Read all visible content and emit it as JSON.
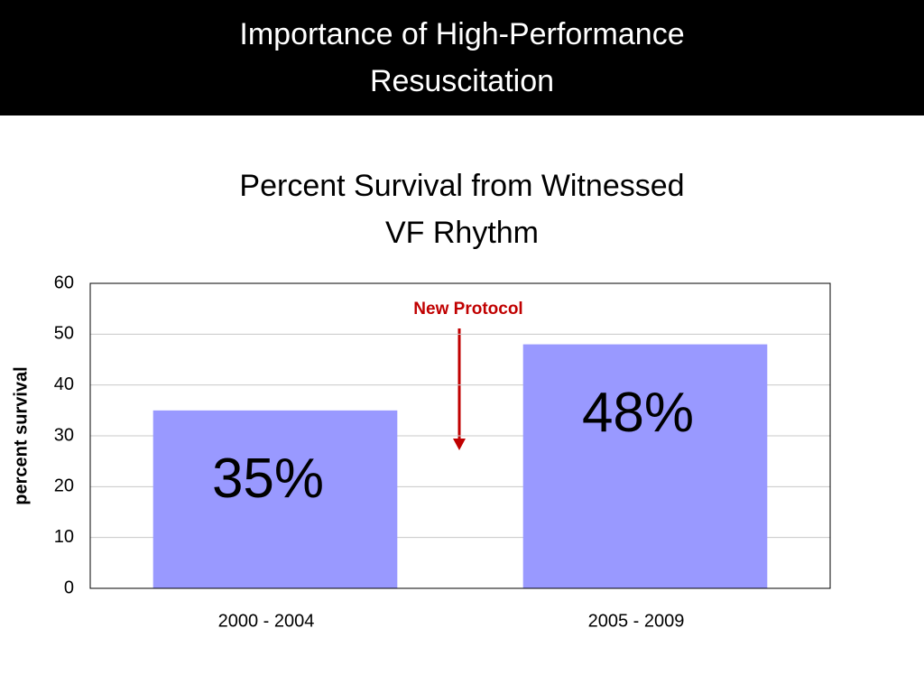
{
  "header": {
    "title": "Importance of High-Performance Resuscitation"
  },
  "chart_data": {
    "type": "bar",
    "title": "Percent Survival from Witnessed VF Rhythm",
    "y_label": "percent survival",
    "annotation": "New Protocol",
    "categories": [
      "2000 - 2004",
      "2005 - 2009"
    ],
    "values": [
      35,
      48
    ],
    "value_labels": [
      "35%",
      "48%"
    ],
    "color": "#9999ff",
    "ylim": [
      0,
      60
    ],
    "yticks": [
      0,
      10,
      20,
      30,
      40,
      50,
      60
    ],
    "grid": true
  }
}
